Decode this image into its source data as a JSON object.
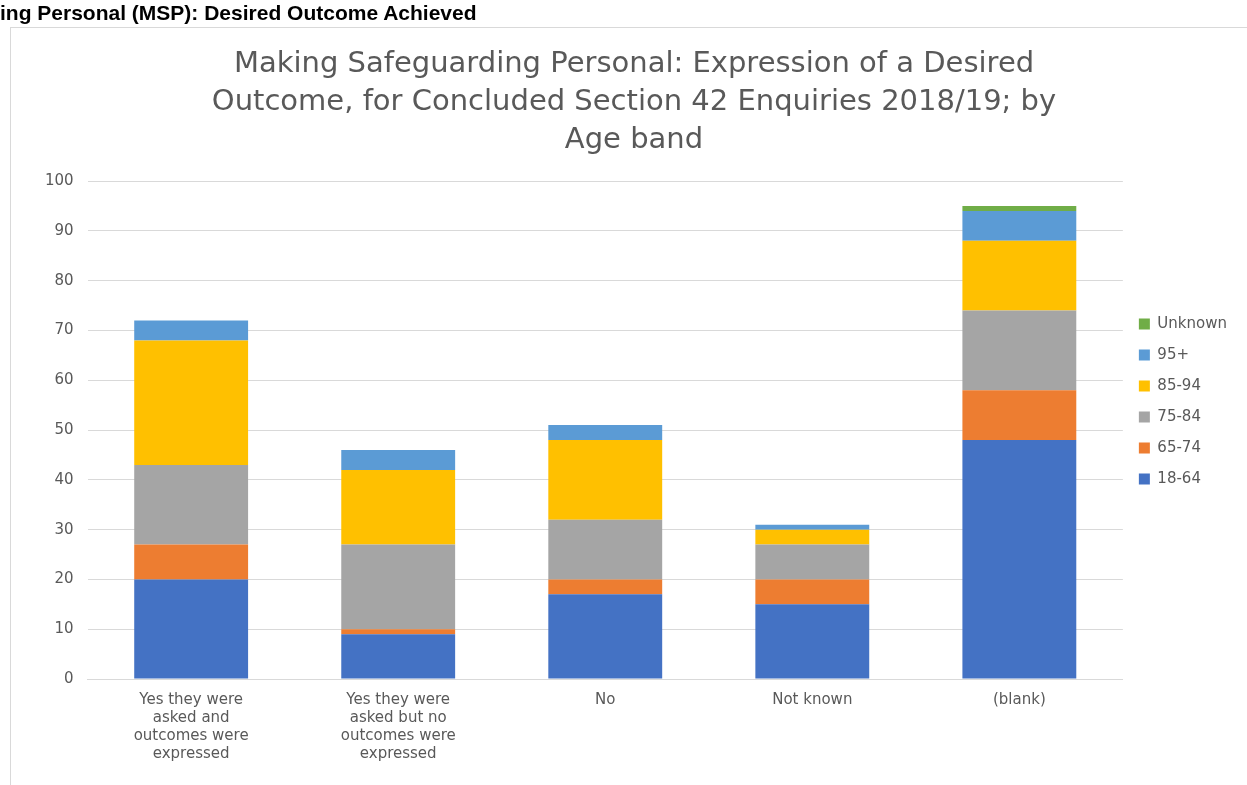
{
  "chart_data": {
    "type": "bar",
    "stacked": true,
    "title": "Making Safeguarding Personal: Expression of a Desired Outcome, for Concluded Section 42 Enquiries 2018/19; by Age band",
    "annotations": [
      "ing Personal (MSP): Desired Outcome Achieved"
    ],
    "categories": [
      "Yes they were asked and outcomes were expressed",
      "Yes they were asked but no outcomes were expressed",
      "No",
      "Not known",
      "(blank)"
    ],
    "series": [
      {
        "name": "18-64",
        "color": "#4472c4",
        "values": [
          20,
          9,
          17,
          15,
          48
        ]
      },
      {
        "name": "65-74",
        "color": "#ed7d31",
        "values": [
          7,
          1,
          3,
          5,
          10
        ]
      },
      {
        "name": "75-84",
        "color": "#a5a5a5",
        "values": [
          16,
          17,
          12,
          7,
          16
        ]
      },
      {
        "name": "85-94",
        "color": "#ffc000",
        "values": [
          25,
          15,
          16,
          3,
          14
        ]
      },
      {
        "name": "95+",
        "color": "#5b9bd5",
        "values": [
          4,
          4,
          3,
          1,
          6
        ]
      },
      {
        "name": "Unknown",
        "color": "#70ad47",
        "values": [
          0,
          0,
          0,
          0,
          1
        ]
      }
    ],
    "ylim": [
      0,
      100
    ],
    "yticks": [
      0,
      10,
      20,
      30,
      40,
      50,
      60,
      70,
      80,
      90,
      100
    ],
    "grid": "y",
    "legend": "right"
  }
}
